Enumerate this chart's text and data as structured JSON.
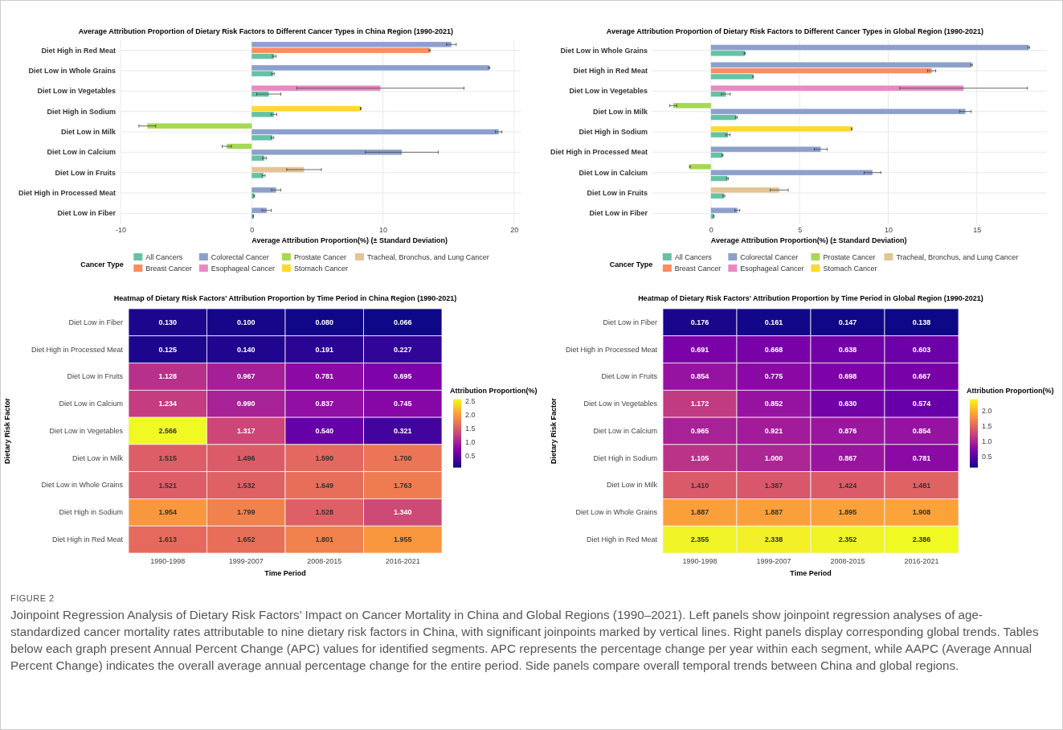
{
  "chart_data": [
    {
      "type": "bar",
      "orientation": "horizontal",
      "title": "Average Attribution Proportion of Dietary Risk Factors to Different Cancer Types in China Region (1990-2021)",
      "xlabel": "Average Attribution Proportion(%) (± Standard Deviation)",
      "legend_title": "Cancer Type",
      "legend": "bottom",
      "grid": true,
      "xlim": [
        -10,
        20.5
      ],
      "xticks": [
        -10,
        0,
        10,
        20
      ],
      "categories": [
        "Diet High in Red Meat",
        "Diet Low in Whole Grains",
        "Diet Low in Vegetables",
        "Diet High in Sodium",
        "Diet Low in Milk",
        "Diet Low in Calcium",
        "Diet Low in Fruits",
        "Diet High in Processed Meat",
        "Diet Low in Fiber"
      ],
      "series": [
        {
          "name": "All Cancers",
          "color": "#66c2a5",
          "values": [
            1.72,
            1.62,
            1.3,
            1.69,
            1.58,
            0.97,
            0.9,
            0.19,
            0.12
          ],
          "errors": [
            0.14,
            0.1,
            0.92,
            0.22,
            0.1,
            0.15,
            0.12,
            0.03,
            0.02
          ]
        },
        {
          "name": "Breast Cancer",
          "color": "#fc8d62",
          "values": [
            13.57,
            null,
            null,
            null,
            null,
            null,
            null,
            null,
            null
          ],
          "errors": [
            0.05,
            null,
            null,
            null,
            null,
            null,
            null,
            null,
            null
          ]
        },
        {
          "name": "Colorectal Cancer",
          "color": "#8da0cb",
          "values": [
            15.22,
            18.1,
            null,
            null,
            18.82,
            11.44,
            null,
            1.86,
            1.14
          ],
          "errors": [
            0.37,
            0.05,
            null,
            null,
            0.25,
            2.78,
            null,
            0.35,
            0.35
          ]
        },
        {
          "name": "Esophageal Cancer",
          "color": "#e78ac3",
          "values": [
            null,
            null,
            9.81,
            null,
            null,
            null,
            null,
            null,
            null
          ],
          "errors": [
            null,
            null,
            6.37,
            null,
            null,
            null,
            null,
            null,
            null
          ]
        },
        {
          "name": "Prostate Cancer",
          "color": "#a6d854",
          "values": [
            null,
            null,
            null,
            null,
            -7.96,
            -1.9,
            null,
            null,
            null
          ],
          "errors": [
            null,
            null,
            null,
            null,
            0.64,
            0.35,
            null,
            null,
            null
          ]
        },
        {
          "name": "Stomach Cancer",
          "color": "#ffd92f",
          "values": [
            null,
            null,
            null,
            8.31,
            null,
            null,
            null,
            null,
            null
          ],
          "errors": [
            null,
            null,
            null,
            0.03,
            null,
            null,
            null,
            null,
            null
          ]
        },
        {
          "name": "Tracheal, Bronchus, and Lung Cancer",
          "color": "#e5c494",
          "values": [
            null,
            null,
            null,
            null,
            null,
            null,
            3.99,
            null,
            null
          ],
          "errors": [
            null,
            null,
            null,
            null,
            null,
            null,
            1.32,
            null,
            null
          ]
        }
      ]
    },
    {
      "type": "bar",
      "orientation": "horizontal",
      "title": "Average Attribution Proportion of Dietary Risk Factors to Different Cancer Types in Global Region (1990-2021)",
      "xlabel": "Average Attribution Proportion(%) (± Standard Deviation)",
      "legend_title": "Cancer Type",
      "legend": "bottom",
      "grid": true,
      "xlim": [
        -3.3,
        18.95
      ],
      "xticks": [
        0,
        5,
        10,
        15
      ],
      "categories": [
        "Diet Low in Whole Grains",
        "Diet High in Red Meat",
        "Diet Low in Vegetables",
        "Diet Low in Milk",
        "Diet High in Sodium",
        "Diet High in Processed Meat",
        "Diet Low in Calcium",
        "Diet Low in Fruits",
        "Diet Low in Fiber"
      ],
      "series": [
        {
          "name": "All Cancers",
          "color": "#66c2a5",
          "values": [
            1.91,
            2.38,
            0.84,
            1.43,
            0.96,
            0.65,
            0.93,
            0.73,
            0.16
          ],
          "errors": [
            0.03,
            0.02,
            0.25,
            0.05,
            0.12,
            0.03,
            0.05,
            0.05,
            0.02
          ]
        },
        {
          "name": "Breast Cancer",
          "color": "#fc8d62",
          "values": [
            null,
            12.45,
            null,
            null,
            null,
            null,
            null,
            null,
            null
          ],
          "errors": [
            null,
            0.23,
            null,
            null,
            null,
            null,
            null,
            null,
            null
          ]
        },
        {
          "name": "Colorectal Cancer",
          "color": "#8da0cb",
          "values": [
            17.92,
            14.7,
            null,
            14.35,
            null,
            6.19,
            9.11,
            null,
            1.49
          ],
          "errors": [
            0.05,
            0.05,
            null,
            0.33,
            null,
            0.36,
            0.47,
            null,
            0.14
          ]
        },
        {
          "name": "Esophageal Cancer",
          "color": "#e78ac3",
          "values": [
            null,
            null,
            14.25,
            null,
            null,
            null,
            null,
            null,
            null
          ],
          "errors": [
            null,
            null,
            3.6,
            null,
            null,
            null,
            null,
            null,
            null
          ]
        },
        {
          "name": "Prostate Cancer",
          "color": "#a6d854",
          "values": [
            null,
            null,
            null,
            -2.12,
            null,
            null,
            -1.19,
            null,
            null
          ],
          "errors": [
            null,
            null,
            null,
            0.2,
            null,
            null,
            0.02,
            null,
            null
          ]
        },
        {
          "name": "Stomach Cancer",
          "color": "#ffd92f",
          "values": [
            null,
            null,
            null,
            null,
            7.94,
            null,
            null,
            null,
            null
          ],
          "errors": [
            null,
            null,
            null,
            null,
            0.02,
            null,
            null,
            null,
            null
          ]
        },
        {
          "name": "Tracheal, Bronchus, and Lung Cancer",
          "color": "#e5c494",
          "values": [
            null,
            null,
            null,
            null,
            null,
            null,
            null,
            3.85,
            null
          ],
          "errors": [
            null,
            null,
            null,
            null,
            null,
            null,
            null,
            0.51,
            null
          ]
        }
      ]
    },
    {
      "type": "heatmap",
      "title": "Heatmap of Dietary Risk Factors' Attribution Proportion by Time Period in China Region (1990-2021)",
      "xlabel": "Time Period",
      "ylabel": "Dietary Risk Factor",
      "clabel": "Attribution Proportion(%)",
      "data_labels": true,
      "clim": [
        0.066,
        2.566
      ],
      "cticks": [
        {
          "value": 0.5,
          "label": "0.5"
        },
        {
          "value": 1,
          "label": "1.0"
        },
        {
          "value": 1.5,
          "label": "1.5"
        },
        {
          "value": 2,
          "label": "2.0"
        },
        {
          "value": 2.5,
          "label": "2.5"
        }
      ],
      "categories": [
        "1990-1998",
        "1999-2007",
        "2008-2015",
        "2016-2021"
      ],
      "y_categories": [
        "Diet Low in Fiber",
        "Diet High in Processed Meat",
        "Diet Low in Fruits",
        "Diet Low in Calcium",
        "Diet Low in Vegetables",
        "Diet Low in Milk",
        "Diet Low in Whole Grains",
        "Diet High in Sodium",
        "Diet High in Red Meat"
      ],
      "cells": [
        [
          0.13,
          0.1,
          0.08,
          0.066
        ],
        [
          0.125,
          0.14,
          0.191,
          0.227
        ],
        [
          1.128,
          0.967,
          0.781,
          0.695
        ],
        [
          1.234,
          0.99,
          0.837,
          0.745
        ],
        [
          2.566,
          1.317,
          0.54,
          0.321
        ],
        [
          1.515,
          1.496,
          1.59,
          1.7
        ],
        [
          1.521,
          1.532,
          1.649,
          1.763
        ],
        [
          1.954,
          1.799,
          1.528,
          1.34
        ],
        [
          1.613,
          1.652,
          1.801,
          1.955
        ]
      ],
      "cell_labels": [
        [
          "0.130",
          "0.100",
          "0.080",
          "0.066"
        ],
        [
          "0.125",
          "0.140",
          "0.191",
          "0.227"
        ],
        [
          "1.128",
          "0.967",
          "0.781",
          "0.695"
        ],
        [
          "1.234",
          "0.990",
          "0.837",
          "0.745"
        ],
        [
          "2.566",
          "1.317",
          "0.540",
          "0.321"
        ],
        [
          "1.515",
          "1.496",
          "1.590",
          "1.700"
        ],
        [
          "1.521",
          "1.532",
          "1.649",
          "1.763"
        ],
        [
          "1.954",
          "1.799",
          "1.528",
          "1.340"
        ],
        [
          "1.613",
          "1.652",
          "1.801",
          "1.955"
        ]
      ]
    },
    {
      "type": "heatmap",
      "title": "Heatmap of Dietary Risk Factors' Attribution Proportion by Time Period in Global Region (1990-2021)",
      "xlabel": "Time Period",
      "ylabel": "Dietary Risk Factor",
      "clabel": "Attribution Proportion(%)",
      "data_labels": true,
      "clim": [
        0.138,
        2.386
      ],
      "cticks": [
        {
          "value": 0.5,
          "label": "0.5"
        },
        {
          "value": 1,
          "label": "1.0"
        },
        {
          "value": 1.5,
          "label": "1.5"
        },
        {
          "value": 2,
          "label": "2.0"
        }
      ],
      "categories": [
        "1990-1998",
        "1999-2007",
        "2008-2015",
        "2016-2021"
      ],
      "y_categories": [
        "Diet Low in Fiber",
        "Diet High in Processed Meat",
        "Diet Low in Fruits",
        "Diet Low in Vegetables",
        "Diet Low in Calcium",
        "Diet High in Sodium",
        "Diet Low in Milk",
        "Diet Low in Whole Grains",
        "Diet High in Red Meat"
      ],
      "cells": [
        [
          0.176,
          0.161,
          0.147,
          0.138
        ],
        [
          0.691,
          0.668,
          0.638,
          0.603
        ],
        [
          0.854,
          0.775,
          0.698,
          0.667
        ],
        [
          1.172,
          0.852,
          0.63,
          0.574
        ],
        [
          0.965,
          0.921,
          0.876,
          0.854
        ],
        [
          1.105,
          1.0,
          0.867,
          0.781
        ],
        [
          1.41,
          1.387,
          1.424,
          1.481
        ],
        [
          1.887,
          1.887,
          1.895,
          1.908
        ],
        [
          2.355,
          2.338,
          2.352,
          2.386
        ]
      ],
      "cell_labels": [
        [
          "0.176",
          "0.161",
          "0.147",
          "0.138"
        ],
        [
          "0.691",
          "0.668",
          "0.638",
          "0.603"
        ],
        [
          "0.854",
          "0.775",
          "0.698",
          "0.667"
        ],
        [
          "1.172",
          "0.852",
          "0.630",
          "0.574"
        ],
        [
          "0.965",
          "0.921",
          "0.876",
          "0.854"
        ],
        [
          "1.105",
          "1.000",
          "0.867",
          "0.781"
        ],
        [
          "1.410",
          "1.387",
          "1.424",
          "1.481"
        ],
        [
          "1.887",
          "1.887",
          "1.895",
          "1.908"
        ],
        [
          "2.355",
          "2.338",
          "2.352",
          "2.386"
        ]
      ],
      "annotations": [
        "FIGURE 2",
        "Joinpoint Regression Analysis of Dietary Risk Factors’ Impact on Cancer Mortality in China and Global Regions (1990–2021). Left panels show joinpoint regression analyses of age-standardized cancer mortality rates attributable to nine dietary risk factors in China, with significant joinpoints marked by vertical lines. Right panels display corresponding global trends. Tables below each graph present Annual Percent Change (APC) values for identified segments. APC represents the percentage change per year within each segment, while AAPC (Average Annual Percent Change) indicates the overall average annual percentage change for the entire period. Side panels compare overall temporal trends between China and global regions."
      ]
    }
  ]
}
